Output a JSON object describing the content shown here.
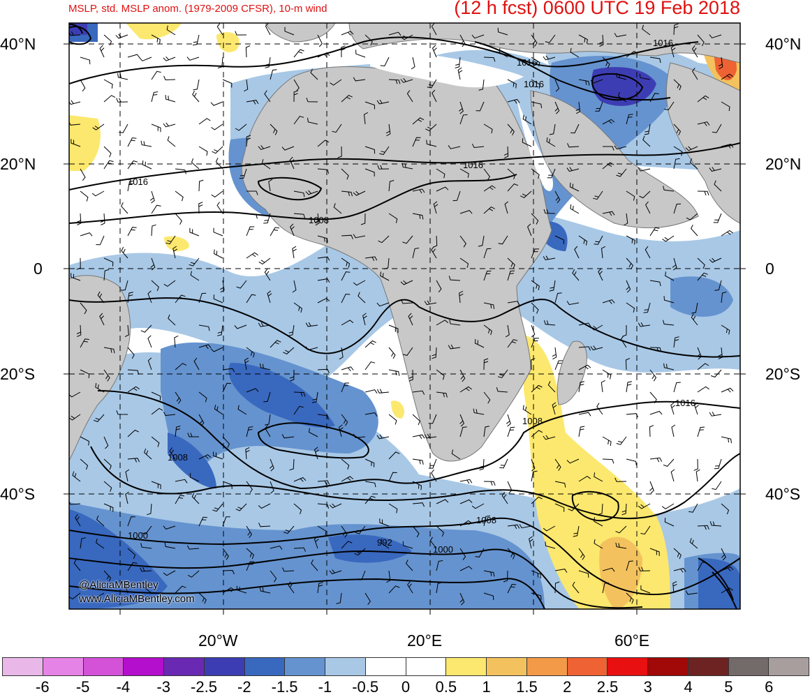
{
  "header": {
    "left_title": "MSLP, std. MSLP anom. (1979-2009 CFSR), 10-m wind",
    "right_title": "(12 h fcst) 0600 UTC 19 Feb 2018"
  },
  "map": {
    "lat_labels": [
      "40°N",
      "20°N",
      "0",
      "20°S",
      "40°S"
    ],
    "lon_labels": [
      "20°W",
      "20°E",
      "60°E"
    ],
    "isobar_labels": [
      "1016",
      "1016",
      "1016",
      "1016",
      "1008",
      "1008",
      "1016",
      "1016",
      "1008",
      "1000",
      "992",
      "1000",
      "1008"
    ]
  },
  "credits": {
    "handle": "@AliciaMBentley",
    "site": "www.AliciaMBentley.com"
  },
  "colorbar": {
    "colors": [
      "#e9b8e9",
      "#e683e6",
      "#d452d8",
      "#b40fcc",
      "#6a29b2",
      "#3d3db3",
      "#3968bf",
      "#6593cf",
      "#a8c8e6",
      "#ffffff",
      "#ffffff",
      "#fce86e",
      "#f3c25e",
      "#f39a49",
      "#ee6233",
      "#e81010",
      "#a10808",
      "#6e2323",
      "#736a6a",
      "#a99e9e"
    ],
    "tick_labels": [
      "-6",
      "-5",
      "-4",
      "-3",
      "-2.5",
      "-2",
      "-1.5",
      "-1",
      "-0.5",
      "0",
      "0.5",
      "1",
      "1.5",
      "2",
      "2.5",
      "3",
      "4",
      "5",
      "6"
    ]
  }
}
